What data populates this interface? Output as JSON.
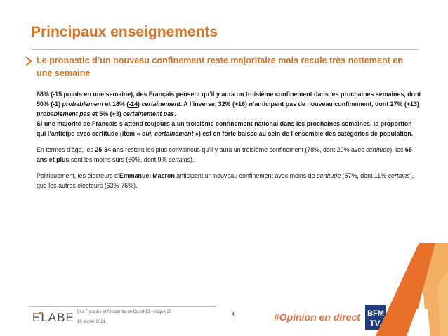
{
  "header": {
    "title": "Principaux enseignements",
    "subtitle": "Le pronostic d’un nouveau confinement reste majoritaire mais recule très nettement en une semaine"
  },
  "body": {
    "p1": [
      {
        "t": "68% (-15 points en une semaine), des Français pensent qu’il y aura un troisième confinement dans les prochaines semaines, dont 50% (-1) ",
        "b": true,
        "i": false,
        "u": false
      },
      {
        "t": "probablement",
        "b": true,
        "i": true,
        "u": false
      },
      {
        "t": " et 18% (",
        "b": true,
        "i": false,
        "u": false
      },
      {
        "t": "-14",
        "b": true,
        "i": false,
        "u": true
      },
      {
        "t": ") ",
        "b": true,
        "i": false,
        "u": false
      },
      {
        "t": "certainement",
        "b": true,
        "i": true,
        "u": false
      },
      {
        "t": ". A l’inverse, 32% (+16) n’anticipent pas de nouveau confinement, dont 27% (+13) ",
        "b": true,
        "i": false,
        "u": false
      },
      {
        "t": "probablement pas",
        "b": true,
        "i": true,
        "u": false
      },
      {
        "t": " et 5% (+3) ",
        "b": true,
        "i": false,
        "u": false
      },
      {
        "t": "certainement pas",
        "b": true,
        "i": true,
        "u": false
      },
      {
        "t": ".",
        "b": true,
        "i": false,
        "u": false
      },
      {
        "br": true
      },
      {
        "t": "Si une majorité de Français s’attend toujours à un troisième confinement national dans les prochaines semaines, la proportion qui l’anticipe avec certitude (item « ",
        "b": true,
        "i": false,
        "u": false
      },
      {
        "t": "oui, certainement",
        "b": true,
        "i": true,
        "u": false
      },
      {
        "t": " ») est en forte baisse au sein de l’ensemble des catégories de population.",
        "b": true,
        "i": false,
        "u": false
      }
    ],
    "p2": [
      {
        "t": "En termes d’âge, les ",
        "b": false,
        "i": false,
        "u": false
      },
      {
        "t": "25-34 ans",
        "b": true,
        "i": false,
        "u": false
      },
      {
        "t": " restent les plus convaincus qu’il y aura un troisième confinement (78%, dont 20% avec ",
        "b": false,
        "i": false,
        "u": false
      },
      {
        "t": "certitude",
        "b": false,
        "i": true,
        "u": false
      },
      {
        "t": "), les ",
        "b": false,
        "i": false,
        "u": false
      },
      {
        "t": "65 ans et plus",
        "b": true,
        "i": false,
        "u": false
      },
      {
        "t": " sont les moins sûrs (60%, dont 9% ",
        "b": false,
        "i": false,
        "u": false
      },
      {
        "t": "certains",
        "b": false,
        "i": true,
        "u": false
      },
      {
        "t": ").",
        "b": false,
        "i": false,
        "u": false
      }
    ],
    "p3": [
      {
        "t": "Politiquement, les électeurs d’",
        "b": false,
        "i": false,
        "u": false
      },
      {
        "t": "Emmanuel Macron",
        "b": true,
        "i": false,
        "u": false
      },
      {
        "t": " anticipent un nouveau confinement avec moins de ",
        "b": false,
        "i": false,
        "u": false
      },
      {
        "t": "certitude",
        "b": false,
        "i": true,
        "u": false
      },
      {
        "t": " (57%, dont 11% ",
        "b": false,
        "i": false,
        "u": false
      },
      {
        "t": "certains",
        "b": false,
        "i": true,
        "u": false
      },
      {
        "t": "), que les autres électeurs (63%-76%).",
        "b": false,
        "i": false,
        "u": false
      }
    ]
  },
  "footer": {
    "brand": "ELABE",
    "study": "Les Français et l’épidémie de Covid-19 - Vague 30",
    "date": "10 février 2021",
    "page": "4",
    "hashtag": "#Opinion en direct",
    "partner_line1": "BFM",
    "partner_line2": "TV."
  },
  "colors": {
    "accent": "#d9711f",
    "hashtag": "#e76f3c",
    "bfm_blue": "#1f3d7a",
    "elabe_text": "#444444",
    "elabe_accent": "#e8702a"
  },
  "icons": {
    "subtitle_marker": "chevron-right-icon",
    "decoration": "orange-triangle-shape"
  }
}
